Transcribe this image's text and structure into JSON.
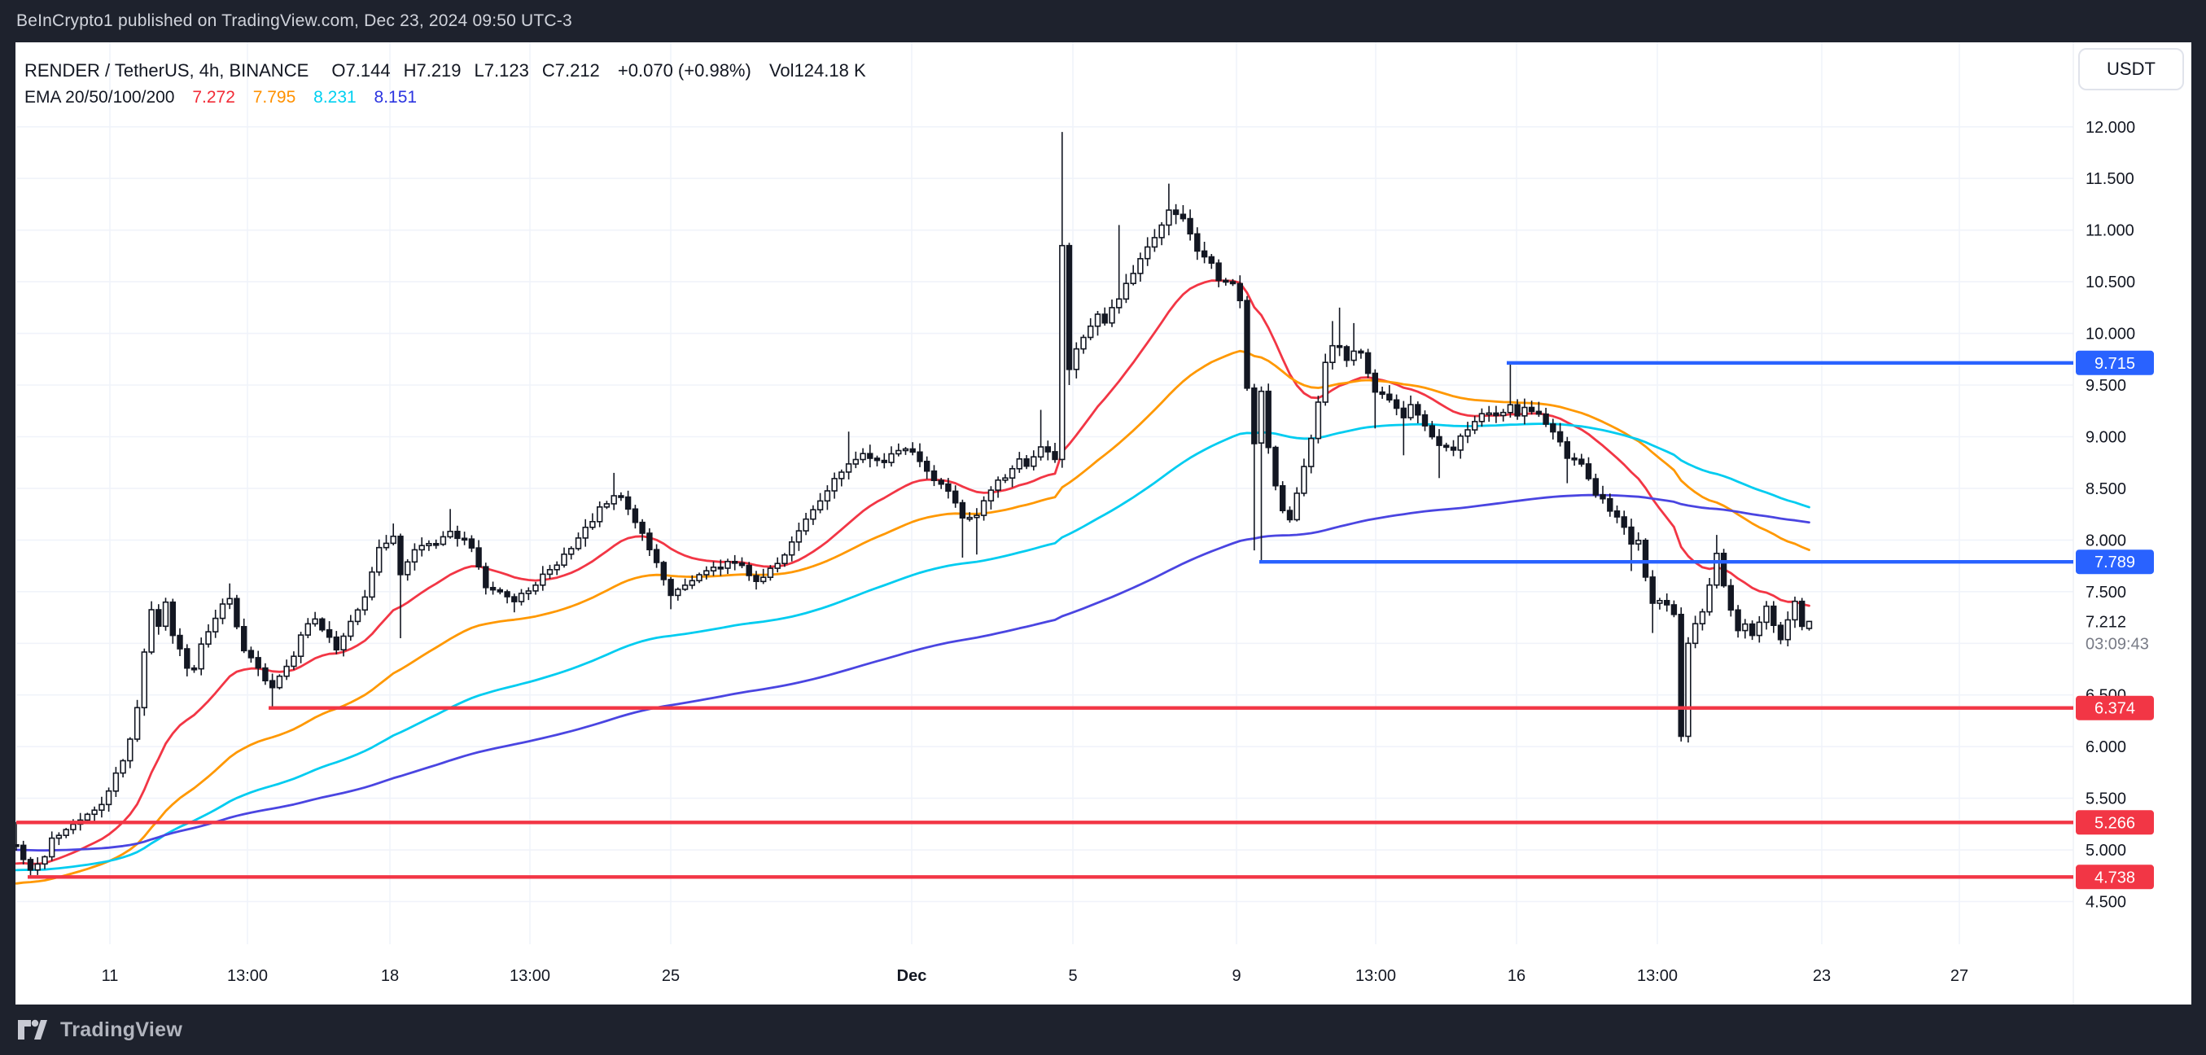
{
  "topbar": {
    "text": "BeInCrypto1 published on TradingView.com, Dec 23, 2024 09:50 UTC-3"
  },
  "header": {
    "symbol": "RENDER / TetherUS, 4h, BINANCE",
    "ohlc_tokens": [
      {
        "prefix": "O",
        "value": "7.144"
      },
      {
        "prefix": "H",
        "value": "7.219"
      },
      {
        "prefix": "L",
        "value": "7.123"
      },
      {
        "prefix": "C",
        "value": "7.212"
      }
    ],
    "change": "+0.070 (+0.98%)",
    "vol_label": "Vol",
    "vol_value": "124.18 K",
    "ema_label": "EMA 20/50/100/200",
    "ema_values": [
      {
        "value": "7.272",
        "color": "#f22b36"
      },
      {
        "value": "7.795",
        "color": "#ff9100"
      },
      {
        "value": "8.231",
        "color": "#00d0f0"
      },
      {
        "value": "8.151",
        "color": "#2b34e0"
      }
    ]
  },
  "price_axis": {
    "currency": "USDT",
    "labels": [
      {
        "text": "12.000",
        "price": 12.0
      },
      {
        "text": "11.500",
        "price": 11.5
      },
      {
        "text": "11.000",
        "price": 11.0
      },
      {
        "text": "10.500",
        "price": 10.5
      },
      {
        "text": "10.000",
        "price": 10.0
      },
      {
        "text": "9.500",
        "price": 9.5
      },
      {
        "text": "9.000",
        "price": 9.0
      },
      {
        "text": "8.500",
        "price": 8.5
      },
      {
        "text": "8.000",
        "price": 8.0
      },
      {
        "text": "7.500",
        "price": 7.5
      },
      {
        "text": "6.500",
        "price": 6.5
      },
      {
        "text": "6.000",
        "price": 6.0
      },
      {
        "text": "5.500",
        "price": 5.5
      },
      {
        "text": "5.000",
        "price": 5.0
      },
      {
        "text": "4.500",
        "price": 4.5
      }
    ],
    "current": {
      "price": "7.212",
      "countdown": "03:09:43"
    }
  },
  "time_axis": [
    {
      "label": "11",
      "x": 135
    },
    {
      "label": "13:00",
      "x": 304
    },
    {
      "label": "18",
      "x": 479
    },
    {
      "label": "13:00",
      "x": 651
    },
    {
      "label": "25",
      "x": 824
    },
    {
      "label": "Dec",
      "x": 1120,
      "bold": true
    },
    {
      "label": "5",
      "x": 1318
    },
    {
      "label": "9",
      "x": 1519
    },
    {
      "label": "13:00",
      "x": 1690
    },
    {
      "label": "16",
      "x": 1863
    },
    {
      "label": "13:00",
      "x": 2036
    },
    {
      "label": "23",
      "x": 2238
    },
    {
      "label": "27",
      "x": 2407
    }
  ],
  "footer": {
    "brand": "TradingView"
  },
  "chart_data": {
    "type": "candlestick",
    "title": "RENDER / TetherUS, 4h, BINANCE",
    "timeframe": "4h",
    "ylim": [
      4.35,
      12.3
    ],
    "y_step": 0.5,
    "hidden_y_tick": "7.000",
    "grid": true,
    "last_candle": {
      "open": 7.144,
      "high": 7.219,
      "low": 7.123,
      "close": 7.212
    },
    "volume_last": "124.18 K",
    "emas": [
      {
        "period": 20,
        "value": 7.272,
        "color": "#f23645"
      },
      {
        "period": 50,
        "value": 7.795,
        "color": "#ff9800"
      },
      {
        "period": 100,
        "value": 8.231,
        "color": "#00ccf0"
      },
      {
        "period": 200,
        "value": 8.151,
        "color": "#4a45e1"
      }
    ],
    "levels": [
      {
        "label": "9.715",
        "price": 9.715,
        "color": "#2962ff",
        "start_x": 1851,
        "kind": "resistance"
      },
      {
        "label": "7.789",
        "price": 7.789,
        "color": "#2962ff",
        "start_x": 1547,
        "kind": "resistance"
      },
      {
        "label": "6.374",
        "price": 6.374,
        "color": "#f23645",
        "start_x": 330,
        "kind": "support"
      },
      {
        "label": "5.266",
        "price": 5.266,
        "color": "#f23645",
        "start_x": 20,
        "kind": "support"
      },
      {
        "label": "4.738",
        "price": 4.738,
        "color": "#f23645",
        "start_x": 34,
        "kind": "support"
      }
    ],
    "candle_count": 253,
    "close_anchors": [
      [
        0,
        5.02
      ],
      [
        2,
        4.8
      ],
      [
        4,
        4.95
      ],
      [
        5,
        5.12
      ],
      [
        9,
        5.3
      ],
      [
        12,
        5.45
      ],
      [
        13,
        5.55
      ],
      [
        14,
        5.72
      ],
      [
        16,
        6.05
      ],
      [
        17,
        6.4
      ],
      [
        18,
        6.9
      ],
      [
        19,
        7.32
      ],
      [
        20,
        7.18
      ],
      [
        21,
        7.42
      ],
      [
        22,
        7.06
      ],
      [
        23,
        6.95
      ],
      [
        24,
        6.78
      ],
      [
        25,
        6.76
      ],
      [
        26,
        6.98
      ],
      [
        28,
        7.22
      ],
      [
        29,
        7.38
      ],
      [
        30,
        7.42
      ],
      [
        31,
        7.15
      ],
      [
        32,
        6.95
      ],
      [
        34,
        6.76
      ],
      [
        35,
        6.62
      ],
      [
        36,
        6.55
      ],
      [
        37,
        6.68
      ],
      [
        39,
        6.88
      ],
      [
        40,
        7.08
      ],
      [
        42,
        7.26
      ],
      [
        43,
        7.14
      ],
      [
        45,
        6.94
      ],
      [
        46,
        7.05
      ],
      [
        47,
        7.22
      ],
      [
        49,
        7.45
      ],
      [
        50,
        7.68
      ],
      [
        51,
        7.92
      ],
      [
        53,
        8.04
      ],
      [
        54,
        7.68
      ],
      [
        55,
        7.78
      ],
      [
        56,
        7.9
      ],
      [
        57,
        7.95
      ],
      [
        59,
        7.95
      ],
      [
        60,
        8.02
      ],
      [
        61,
        8.08
      ],
      [
        63,
        8.0
      ],
      [
        64,
        7.9
      ],
      [
        65,
        7.72
      ],
      [
        66,
        7.55
      ],
      [
        68,
        7.48
      ],
      [
        70,
        7.42
      ],
      [
        72,
        7.52
      ],
      [
        74,
        7.65
      ],
      [
        76,
        7.78
      ],
      [
        78,
        7.9
      ],
      [
        80,
        8.1
      ],
      [
        82,
        8.3
      ],
      [
        84,
        8.45
      ],
      [
        85,
        8.4
      ],
      [
        86,
        8.28
      ],
      [
        88,
        8.05
      ],
      [
        90,
        7.78
      ],
      [
        92,
        7.45
      ],
      [
        94,
        7.58
      ],
      [
        97,
        7.7
      ],
      [
        101,
        7.8
      ],
      [
        104,
        7.6
      ],
      [
        107,
        7.78
      ],
      [
        110,
        8.08
      ],
      [
        112,
        8.3
      ],
      [
        114,
        8.5
      ],
      [
        117,
        8.72
      ],
      [
        119,
        8.85
      ],
      [
        122,
        8.75
      ],
      [
        124,
        8.88
      ],
      [
        126,
        8.85
      ],
      [
        129,
        8.6
      ],
      [
        132,
        8.38
      ],
      [
        133,
        8.2
      ],
      [
        135,
        8.25
      ],
      [
        137,
        8.5
      ],
      [
        139,
        8.62
      ],
      [
        141,
        8.78
      ],
      [
        142,
        8.7
      ],
      [
        144,
        8.9
      ],
      [
        146,
        8.8
      ],
      [
        147,
        10.85
      ],
      [
        148,
        9.65
      ],
      [
        149,
        9.85
      ],
      [
        151,
        10.05
      ],
      [
        152,
        10.2
      ],
      [
        153,
        10.1
      ],
      [
        155,
        10.35
      ],
      [
        156,
        10.5
      ],
      [
        158,
        10.7
      ],
      [
        159,
        10.85
      ],
      [
        161,
        11.05
      ],
      [
        162,
        11.2
      ],
      [
        164,
        11.1
      ],
      [
        165,
        10.96
      ],
      [
        166,
        10.82
      ],
      [
        168,
        10.66
      ],
      [
        169,
        10.52
      ],
      [
        171,
        10.46
      ],
      [
        172,
        10.32
      ],
      [
        173,
        9.45
      ],
      [
        174,
        8.94
      ],
      [
        175,
        9.44
      ],
      [
        176,
        8.9
      ],
      [
        177,
        8.55
      ],
      [
        178,
        8.3
      ],
      [
        179,
        8.2
      ],
      [
        180,
        8.45
      ],
      [
        181,
        8.7
      ],
      [
        182,
        9.0
      ],
      [
        183,
        9.35
      ],
      [
        184,
        9.7
      ],
      [
        185,
        9.9
      ],
      [
        186,
        9.85
      ],
      [
        187,
        9.75
      ],
      [
        188,
        9.85
      ],
      [
        189,
        9.8
      ],
      [
        190,
        9.6
      ],
      [
        191,
        9.45
      ],
      [
        193,
        9.35
      ],
      [
        195,
        9.2
      ],
      [
        196,
        9.3
      ],
      [
        198,
        9.1
      ],
      [
        200,
        8.9
      ],
      [
        202,
        8.85
      ],
      [
        203,
        9.0
      ],
      [
        205,
        9.15
      ],
      [
        207,
        9.25
      ],
      [
        208,
        9.2
      ],
      [
        210,
        9.3
      ],
      [
        211,
        9.2
      ],
      [
        212,
        9.3
      ],
      [
        214,
        9.2
      ],
      [
        215,
        9.1
      ],
      [
        217,
        8.95
      ],
      [
        218,
        8.8
      ],
      [
        220,
        8.75
      ],
      [
        221,
        8.6
      ],
      [
        222,
        8.45
      ],
      [
        224,
        8.3
      ],
      [
        226,
        8.12
      ],
      [
        227,
        7.95
      ],
      [
        228,
        8.02
      ],
      [
        229,
        7.62
      ],
      [
        230,
        7.4
      ],
      [
        231,
        7.42
      ],
      [
        232,
        7.35
      ],
      [
        233,
        7.3
      ],
      [
        234,
        6.1
      ],
      [
        235,
        7.0
      ],
      [
        236,
        7.2
      ],
      [
        237,
        7.32
      ],
      [
        238,
        7.56
      ],
      [
        239,
        7.88
      ],
      [
        240,
        7.58
      ],
      [
        241,
        7.34
      ],
      [
        242,
        7.12
      ],
      [
        243,
        7.2
      ],
      [
        244,
        7.08
      ],
      [
        245,
        7.22
      ],
      [
        246,
        7.34
      ],
      [
        247,
        7.16
      ],
      [
        248,
        7.02
      ],
      [
        249,
        7.24
      ],
      [
        250,
        7.42
      ],
      [
        251,
        7.14
      ],
      [
        252,
        7.212
      ]
    ],
    "candle_overrides": {
      "0": {
        "o": 5.05,
        "h": 5.27
      },
      "2": {
        "l": 4.738
      },
      "11": {
        "l": 5.27
      },
      "30": {
        "h": 7.58
      },
      "36": {
        "l": 6.374
      },
      "53": {
        "h": 8.16
      },
      "54": {
        "l": 7.05
      },
      "61": {
        "h": 8.3
      },
      "70": {
        "l": 7.3
      },
      "84": {
        "h": 8.65
      },
      "92": {
        "l": 7.33
      },
      "117": {
        "h": 9.05
      },
      "133": {
        "l": 7.83
      },
      "135": {
        "l": 7.86
      },
      "144": {
        "h": 9.26
      },
      "147": {
        "o": 8.78,
        "c": 10.85,
        "h": 11.95,
        "l": 8.7
      },
      "148": {
        "l": 9.5
      },
      "155": {
        "h": 11.05
      },
      "162": {
        "h": 11.45
      },
      "174": {
        "l": 7.9
      },
      "175": {
        "o": 8.94,
        "c": 9.44,
        "l": 7.789
      },
      "185": {
        "h": 10.12
      },
      "186": {
        "h": 10.25
      },
      "188": {
        "h": 10.1
      },
      "191": {
        "l": 9.08
      },
      "195": {
        "l": 8.82
      },
      "200": {
        "l": 8.6
      },
      "210": {
        "h": 9.715
      },
      "218": {
        "l": 8.55
      },
      "227": {
        "l": 7.7
      },
      "230": {
        "l": 7.1
      },
      "234": {
        "o": 7.28,
        "c": 6.1,
        "l": 6.05
      },
      "235": {
        "o": 6.1,
        "c": 7.0,
        "h": 7.06,
        "l": 6.04
      },
      "239": {
        "h": 8.05
      },
      "252": {
        "o": 7.144,
        "c": 7.212,
        "h": 7.219,
        "l": 7.123
      }
    },
    "colors": {
      "up_fill": "#ffffff",
      "down_fill": "#131722",
      "outline": "#131722",
      "grid": "#f0f3fa",
      "axis_text": "#131722",
      "countdown_text": "#787b86",
      "badge_text": "#ffffff"
    }
  }
}
